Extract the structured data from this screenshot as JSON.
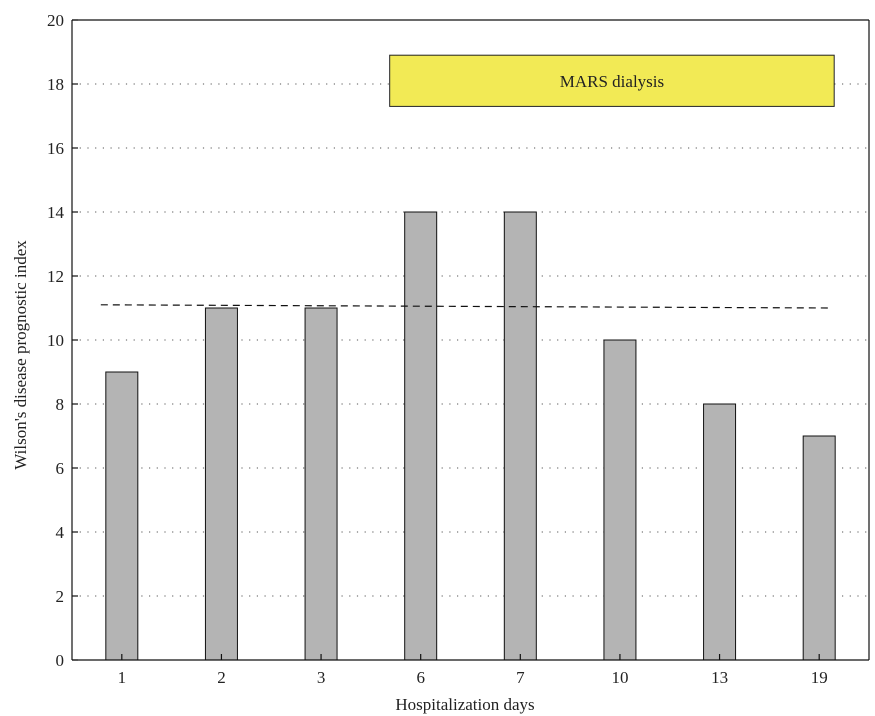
{
  "chart_data": {
    "type": "bar",
    "title": "",
    "xlabel": "Hospitalization days",
    "ylabel": "Wilson's disease prognostic index",
    "categories": [
      "1",
      "2",
      "3",
      "6",
      "7",
      "10",
      "13",
      "19"
    ],
    "values": [
      9,
      11,
      11,
      14,
      14,
      10,
      8,
      7
    ],
    "ylim": [
      0,
      20
    ],
    "yticks": [
      0,
      2,
      4,
      6,
      8,
      10,
      12,
      14,
      16,
      18,
      20
    ],
    "grid": "horizontal dotted",
    "bar_color": "#b4b4b4",
    "reference_line": {
      "style": "dashed",
      "start_value": 11.1,
      "end_value": 11.0
    },
    "annotation": {
      "text": "MARS dialysis",
      "color": "#f2ea55",
      "from_category": "6",
      "to_category": "19",
      "y_range": [
        17.3,
        18.9
      ]
    }
  }
}
